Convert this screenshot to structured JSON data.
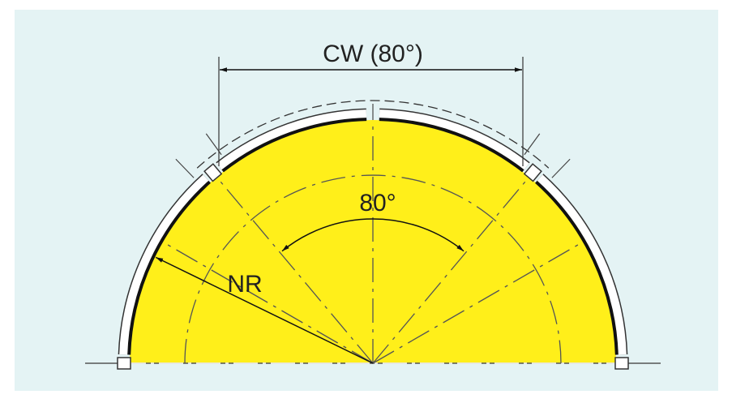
{
  "labels": {
    "cw": "CW (80°)",
    "angle": "80°",
    "nr": "NR"
  }
}
